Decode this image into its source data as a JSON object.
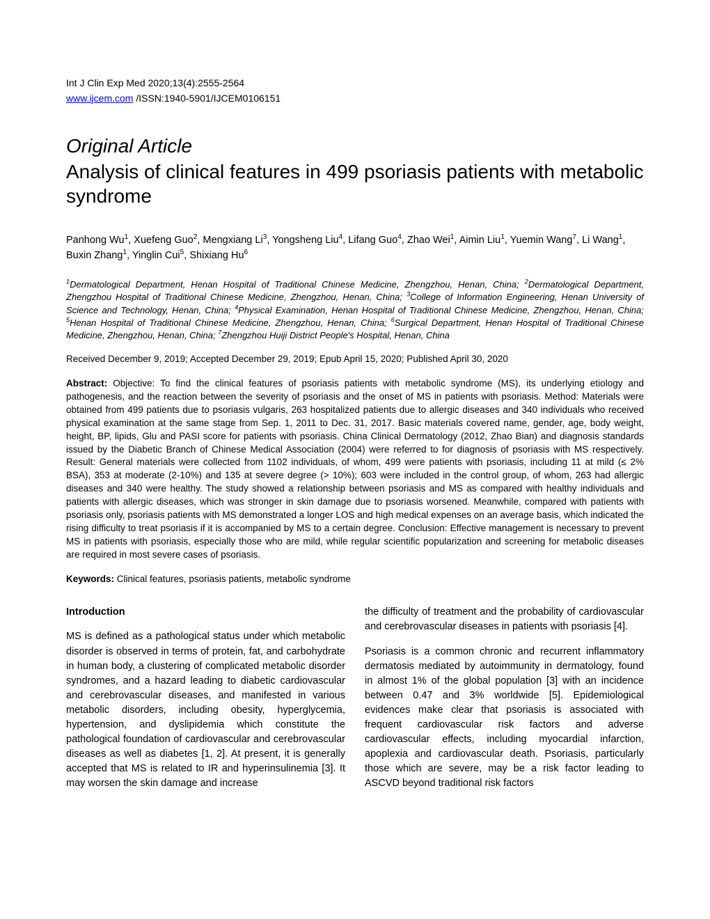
{
  "journal": {
    "citation": "Int J Clin Exp Med 2020;13(4):2555-2564",
    "url": "www.ijcem.com",
    "issn": " /ISSN:1940-5901/IJCEM0106151"
  },
  "article_type": "Original Article",
  "title": "Analysis of clinical features in 499 psoriasis patients with metabolic syndrome",
  "authors_html": "Panhong Wu<sup>1</sup>, Xuefeng Guo<sup>2</sup>, Mengxiang Li<sup>3</sup>, Yongsheng Liu<sup>4</sup>, Lifang Guo<sup>4</sup>, Zhao Wei<sup>1</sup>, Aimin Liu<sup>1</sup>, Yuemin Wang<sup>7</sup>, Li Wang<sup>1</sup>, Buxin Zhang<sup>1</sup>, Yinglin Cui<sup>5</sup>, Shixiang Hu<sup>6</sup>",
  "affiliations_html": "<sup>1</sup>Dermatological Department, Henan Hospital of Traditional Chinese Medicine, Zhengzhou, Henan, China; <sup>2</sup>Dermatological Department, Zhengzhou Hospital of Traditional Chinese Medicine, Zhengzhou, Henan, China; <sup>3</sup>College of Information Engineering, Henan University of Science and Technology, Henan, China; <sup>4</sup>Physical Examination, Henan Hospital of Traditional Chinese Medicine, Zhengzhou, Henan, China; <sup>5</sup>Henan Hospital of Traditional Chinese Medicine, Zhengzhou, Henan, China; <sup>6</sup>Surgical Department, Henan Hospital of Traditional Chinese Medicine, Zhengzhou, Henan, China; <sup>7</sup>Zhengzhou Huiji District People's Hospital, Henan, China",
  "dates": "Received December 9, 2019; Accepted December 29, 2019; Epub April 15, 2020; Published April 30, 2020",
  "abstract": {
    "label": "Abstract:",
    "text": " Objective: To find the clinical features of psoriasis patients with metabolic syndrome (MS), its underlying etiology and pathogenesis, and the reaction between the severity of psoriasis and the onset of MS in patients with psoriasis. Method: Materials were obtained from 499 patients due to psoriasis vulgaris, 263 hospitalized patients due to allergic diseases and 340 individuals who received physical examination at the same stage from Sep. 1, 2011 to Dec. 31, 2017. Basic materials covered name, gender, age, body weight, height, BP, lipids, Glu and PASI score for patients with psoriasis. China Clinical Dermatology (2012, Zhao Bian) and diagnosis standards issued by the Diabetic Branch of Chinese Medical Association (2004) were referred to for diagnosis of psoriasis with MS respectively. Result: General materials were collected from 1102 individuals, of whom, 499 were patients with psoriasis, including 11 at mild (≤ 2% BSA), 353 at moderate (2-10%) and 135 at severe degree (> 10%); 603 were included in the control group, of whom, 263 had allergic diseases and 340 were healthy. The study showed a relationship between psoriasis and MS as compared with healthy individuals and patients with allergic diseases, which was stronger in skin damage due to psoriasis worsened. Meanwhile, compared with patients with psoriasis only, psoriasis patients with MS demonstrated a longer LOS and high medical expenses on an average basis, which indicated the rising difficulty to treat psoriasis if it is accompanied by MS to a certain degree. Conclusion: Effective management is necessary to prevent MS in patients with psoriasis, especially those who are mild, while regular scientific popularization and screening for metabolic diseases are required in most severe cases of psoriasis."
  },
  "keywords": {
    "label": "Keywords:",
    "text": " Clinical features, psoriasis patients, metabolic syndrome"
  },
  "body": {
    "left_col": {
      "heading": "Introduction",
      "para1": "MS is defined as a pathological status under which metabolic disorder is observed in terms of protein, fat, and carbohydrate in human body, a clustering of complicated metabolic disorder syndromes, and a hazard leading to diabetic cardiovascular and cerebrovascular diseases, and manifested in various metabolic disorders, including obesity, hyperglycemia, hypertension, and dyslipidemia which constitute the pathological foundation of cardiovascular and cerebrovascular diseases as well as diabetes [1, 2]. At present, it is generally accepted that MS is related to IR and hyperinsulinemia [3]. It may worsen the skin damage and increase"
    },
    "right_col": {
      "para1": "the difficulty of treatment and the probability of cardiovascular and cerebrovascular diseases in patients with psoriasis [4].",
      "para2": "Psoriasis is a common chronic and recurrent inflammatory dermatosis mediated by autoimmunity in dermatology, found in almost 1% of the global population [3] with an incidence between 0.47 and 3% worldwide [5]. Epidemiological evidences make clear that psoriasis is associated with frequent cardiovascular risk factors and adverse cardiovascular effects, including myocardial infarction, apoplexia and cardiovascular death. Psoriasis, particularly those which are severe, may be a risk factor leading to ASCVD beyond traditional risk factors"
    }
  },
  "colors": {
    "background": "#ffffff",
    "text": "#000000",
    "link": "#0000ee"
  },
  "typography": {
    "body_font": "Arial, Helvetica, sans-serif",
    "journal_ref_size": 14,
    "article_type_size": 28,
    "title_size": 28,
    "authors_size": 14.5,
    "affiliations_size": 13,
    "dates_size": 13.5,
    "abstract_size": 13.5,
    "body_size": 14.5
  }
}
